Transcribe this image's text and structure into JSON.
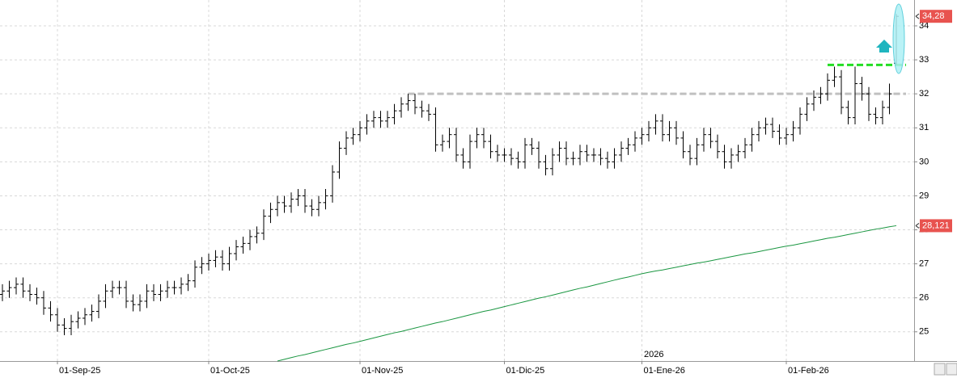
{
  "chart_data": {
    "type": "ohlc",
    "categories": [
      null,
      null,
      null,
      null,
      null,
      null,
      null,
      null,
      "01-Sep-25",
      null,
      null,
      null,
      null,
      null,
      null,
      null,
      null,
      null,
      null,
      null,
      null,
      null,
      null,
      null,
      null,
      null,
      null,
      null,
      null,
      null,
      "01-Oct-25",
      null,
      null,
      null,
      null,
      null,
      null,
      null,
      null,
      null,
      null,
      null,
      null,
      null,
      null,
      null,
      null,
      null,
      null,
      null,
      null,
      null,
      "01-Nov-25",
      null,
      null,
      null,
      null,
      null,
      null,
      null,
      null,
      null,
      null,
      null,
      null,
      null,
      null,
      null,
      null,
      null,
      null,
      null,
      null,
      "01-Dic-25",
      null,
      null,
      null,
      null,
      null,
      null,
      null,
      null,
      null,
      null,
      null,
      null,
      null,
      null,
      null,
      null,
      null,
      null,
      null,
      "01-Ene-26",
      null,
      null,
      null,
      null,
      null,
      null,
      null,
      null,
      null,
      null,
      null,
      null,
      null,
      null,
      null,
      null,
      null,
      null,
      null,
      null,
      "01-Feb-26",
      null,
      null,
      null,
      null,
      null,
      null,
      null,
      null,
      null,
      null,
      null,
      null,
      null,
      null,
      null,
      null
    ],
    "open": [
      26.1,
      26.2,
      26.3,
      26.4,
      26.2,
      26.1,
      26.0,
      25.7,
      25.5,
      25.2,
      25.1,
      25.3,
      25.4,
      25.5,
      25.6,
      25.9,
      26.2,
      26.3,
      26.3,
      25.9,
      25.8,
      25.9,
      26.2,
      26.1,
      26.2,
      26.3,
      26.3,
      26.4,
      26.5,
      26.9,
      27.0,
      27.1,
      27.2,
      27.0,
      27.3,
      27.5,
      27.6,
      27.8,
      27.9,
      28.4,
      28.6,
      28.8,
      28.7,
      28.9,
      29.0,
      28.7,
      28.6,
      28.8,
      29.0,
      29.7,
      30.4,
      30.7,
      30.8,
      31.0,
      31.2,
      31.3,
      31.2,
      31.3,
      31.5,
      31.7,
      31.8,
      31.6,
      31.5,
      31.4,
      30.5,
      30.6,
      30.8,
      30.2,
      30.0,
      30.6,
      30.8,
      30.6,
      30.3,
      30.2,
      30.2,
      30.1,
      30.0,
      30.5,
      30.4,
      30.0,
      29.8,
      30.2,
      30.4,
      30.1,
      30.1,
      30.3,
      30.2,
      30.2,
      30.1,
      30.0,
      30.2,
      30.4,
      30.5,
      30.7,
      30.8,
      31.0,
      31.2,
      30.8,
      31.0,
      30.7,
      30.3,
      30.1,
      30.5,
      30.8,
      30.6,
      30.3,
      30.0,
      30.2,
      30.3,
      30.5,
      30.8,
      31.0,
      31.1,
      30.9,
      30.7,
      30.8,
      31.0,
      31.4,
      31.7,
      31.9,
      32.0,
      32.4,
      32.5,
      31.6,
      31.3,
      32.3,
      32.0,
      31.4,
      31.3,
      31.6,
      32.9
    ],
    "high": [
      26.4,
      26.5,
      26.6,
      26.6,
      26.4,
      26.3,
      26.2,
      25.9,
      25.7,
      25.4,
      25.5,
      25.6,
      25.7,
      25.8,
      26.1,
      26.4,
      26.5,
      26.5,
      26.5,
      26.1,
      26.1,
      26.4,
      26.4,
      26.4,
      26.5,
      26.5,
      26.6,
      26.7,
      27.1,
      27.2,
      27.3,
      27.4,
      27.4,
      27.5,
      27.7,
      27.8,
      28.0,
      28.1,
      28.6,
      28.8,
      29.0,
      29.0,
      29.1,
      29.2,
      29.2,
      28.9,
      29.0,
      29.2,
      29.9,
      30.6,
      30.9,
      31.0,
      31.2,
      31.4,
      31.5,
      31.5,
      31.5,
      31.7,
      31.9,
      32.0,
      32.0,
      31.8,
      31.7,
      31.6,
      30.8,
      31.0,
      31.0,
      30.4,
      30.8,
      31.0,
      31.0,
      30.8,
      30.5,
      30.4,
      30.4,
      30.3,
      30.7,
      30.7,
      30.6,
      30.2,
      30.4,
      30.6,
      30.6,
      30.3,
      30.5,
      30.5,
      30.4,
      30.4,
      30.3,
      30.4,
      30.6,
      30.7,
      30.9,
      31.0,
      31.2,
      31.4,
      31.4,
      31.2,
      31.2,
      30.9,
      30.5,
      30.7,
      31.0,
      31.0,
      30.8,
      30.5,
      30.4,
      30.5,
      30.7,
      31.0,
      31.2,
      31.3,
      31.3,
      31.1,
      31.0,
      31.2,
      31.6,
      31.9,
      32.1,
      32.2,
      32.6,
      32.8,
      32.7,
      31.8,
      32.8,
      32.5,
      32.2,
      31.6,
      31.8,
      32.3,
      34.35
    ],
    "low": [
      25.9,
      26.0,
      26.1,
      26.0,
      25.9,
      25.8,
      25.5,
      25.3,
      25.0,
      24.9,
      24.9,
      25.1,
      25.2,
      25.3,
      25.4,
      25.7,
      26.0,
      26.1,
      25.7,
      25.6,
      25.6,
      25.7,
      25.9,
      25.9,
      26.0,
      26.1,
      26.1,
      26.2,
      26.3,
      26.7,
      26.8,
      26.9,
      26.8,
      26.8,
      27.1,
      27.3,
      27.4,
      27.6,
      27.7,
      28.2,
      28.4,
      28.5,
      28.5,
      28.7,
      28.5,
      28.4,
      28.4,
      28.6,
      28.8,
      29.5,
      30.2,
      30.5,
      30.6,
      30.8,
      31.0,
      31.0,
      31.0,
      31.1,
      31.3,
      31.5,
      31.4,
      31.3,
      31.2,
      30.3,
      30.3,
      30.4,
      30.0,
      29.8,
      29.8,
      30.4,
      30.4,
      30.1,
      30.0,
      30.0,
      29.9,
      29.8,
      29.8,
      30.2,
      29.8,
      29.6,
      29.6,
      30.0,
      29.9,
      29.9,
      29.9,
      30.0,
      30.0,
      29.9,
      29.8,
      29.8,
      30.0,
      30.2,
      30.3,
      30.5,
      30.6,
      30.8,
      30.6,
      30.6,
      30.5,
      30.1,
      29.9,
      29.9,
      30.3,
      30.4,
      30.1,
      29.8,
      29.8,
      30.0,
      30.1,
      30.3,
      30.6,
      30.8,
      30.7,
      30.5,
      30.5,
      30.6,
      30.8,
      31.2,
      31.5,
      31.7,
      31.8,
      32.2,
      31.4,
      31.1,
      31.1,
      31.8,
      31.2,
      31.1,
      31.1,
      31.4,
      32.85
    ],
    "close": [
      26.2,
      26.3,
      26.4,
      26.2,
      26.1,
      26.0,
      25.7,
      25.5,
      25.2,
      25.1,
      25.3,
      25.4,
      25.5,
      25.6,
      25.9,
      26.2,
      26.3,
      26.3,
      25.9,
      25.8,
      25.9,
      26.2,
      26.1,
      26.2,
      26.3,
      26.3,
      26.4,
      26.5,
      26.9,
      27.0,
      27.1,
      27.2,
      27.0,
      27.3,
      27.5,
      27.6,
      27.8,
      27.9,
      28.4,
      28.6,
      28.8,
      28.7,
      28.9,
      29.0,
      28.7,
      28.6,
      28.8,
      29.0,
      29.7,
      30.4,
      30.7,
      30.8,
      31.0,
      31.2,
      31.3,
      31.2,
      31.3,
      31.5,
      31.7,
      31.8,
      31.6,
      31.5,
      31.4,
      30.5,
      30.6,
      30.8,
      30.2,
      30.0,
      30.6,
      30.8,
      30.6,
      30.3,
      30.2,
      30.2,
      30.1,
      30.0,
      30.5,
      30.4,
      30.0,
      29.8,
      30.2,
      30.4,
      30.1,
      30.1,
      30.3,
      30.2,
      30.2,
      30.1,
      30.0,
      30.2,
      30.4,
      30.5,
      30.7,
      30.8,
      31.0,
      31.2,
      30.8,
      31.0,
      30.7,
      30.3,
      30.1,
      30.5,
      30.8,
      30.6,
      30.3,
      30.0,
      30.2,
      30.3,
      30.5,
      30.8,
      31.0,
      31.1,
      30.9,
      30.7,
      30.8,
      31.0,
      31.4,
      31.7,
      31.9,
      32.0,
      32.4,
      32.5,
      31.6,
      31.3,
      32.3,
      32.0,
      31.4,
      31.3,
      31.6,
      32.0,
      34.28
    ],
    "color": "#000000",
    "last_label": "34,28",
    "moving_average": {
      "color": "#1a9641",
      "last_label": "28,121",
      "values": [
        null,
        null,
        null,
        null,
        null,
        null,
        null,
        null,
        null,
        null,
        null,
        null,
        null,
        null,
        null,
        null,
        null,
        null,
        null,
        null,
        null,
        null,
        null,
        null,
        null,
        null,
        null,
        null,
        null,
        null,
        null,
        null,
        null,
        null,
        null,
        null,
        null,
        null,
        null,
        null,
        24.14,
        24.19,
        24.24,
        24.29,
        24.33,
        24.38,
        24.43,
        24.48,
        24.53,
        24.58,
        24.63,
        24.67,
        24.72,
        24.77,
        24.82,
        24.87,
        24.92,
        24.97,
        25.01,
        25.06,
        25.11,
        25.16,
        25.21,
        25.26,
        25.3,
        25.35,
        25.4,
        25.45,
        25.5,
        25.55,
        25.6,
        25.64,
        25.69,
        25.74,
        25.79,
        25.84,
        25.89,
        25.94,
        25.99,
        26.03,
        26.08,
        26.13,
        26.18,
        26.23,
        26.28,
        26.32,
        26.37,
        26.42,
        26.47,
        26.52,
        26.57,
        26.61,
        26.66,
        26.71,
        26.75,
        26.79,
        26.82,
        26.86,
        26.9,
        26.94,
        26.98,
        27.02,
        27.05,
        27.09,
        27.13,
        27.17,
        27.21,
        27.25,
        27.29,
        27.32,
        27.36,
        27.4,
        27.44,
        27.48,
        27.52,
        27.55,
        27.59,
        27.63,
        27.67,
        27.71,
        27.75,
        27.78,
        27.82,
        27.86,
        27.9,
        27.94,
        27.98,
        28.02,
        28.05,
        28.09,
        28.121
      ]
    },
    "levels": [
      {
        "value": 32.0,
        "color": "#c0c0c0",
        "from": 59
      },
      {
        "value": 32.85,
        "color": "#22dd22",
        "from": 120
      }
    ],
    "annotation": "2026",
    "ylim": [
      24.14,
      34.76
    ],
    "yticks": [
      25,
      26,
      27,
      28,
      29,
      30,
      31,
      32,
      33,
      34
    ],
    "grid": true
  }
}
